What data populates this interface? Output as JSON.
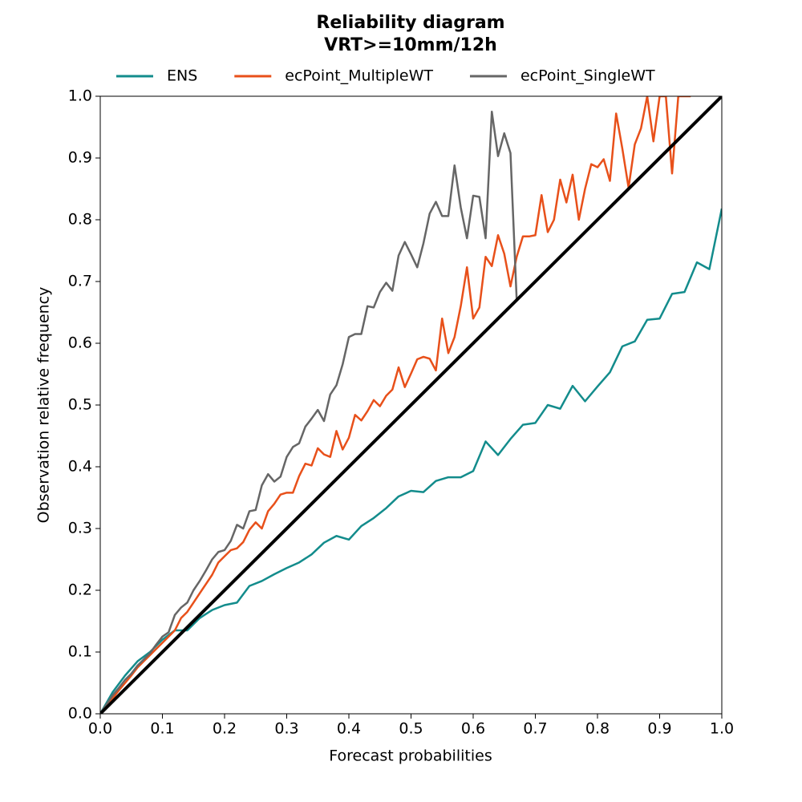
{
  "chart_data": {
    "type": "line",
    "title": "Reliability diagram",
    "subtitle": "VRT>=10mm/12h",
    "x_label": "Forecast probabilities",
    "y_label": "Observation relative frequency",
    "xlim": [
      0,
      1
    ],
    "ylim": [
      0,
      1
    ],
    "xticks": [
      {
        "value": 0,
        "label": "0.0"
      },
      0.1,
      0.2,
      0.3,
      0.4,
      0.5,
      0.6,
      0.7,
      0.8,
      0.9,
      {
        "value": 1,
        "label": "1.0"
      }
    ],
    "yticks": [
      {
        "value": 0,
        "label": "0.0"
      },
      0.1,
      0.2,
      0.3,
      0.4,
      0.5,
      0.6,
      0.7,
      0.8,
      0.9,
      {
        "value": 1,
        "label": "1.0"
      }
    ],
    "grid": false,
    "legend": "top",
    "reference_line": {
      "x": [
        0,
        1
      ],
      "values": [
        0,
        1
      ],
      "color": "#000000"
    },
    "series": [
      {
        "name": "ENS",
        "color": "#138c8c",
        "x": [
          0,
          0.02,
          0.04,
          0.06,
          0.08,
          0.1,
          0.12,
          0.14,
          0.16,
          0.18,
          0.2,
          0.22,
          0.24,
          0.26,
          0.28,
          0.3,
          0.32,
          0.34,
          0.36,
          0.38,
          0.4,
          0.42,
          0.44,
          0.46,
          0.48,
          0.5,
          0.52,
          0.54,
          0.56,
          0.58,
          0.6,
          0.62,
          0.64,
          0.66,
          0.68,
          0.7,
          0.72,
          0.74,
          0.76,
          0.78,
          0.8,
          0.82,
          0.84,
          0.86,
          0.88,
          0.9,
          0.92,
          0.94,
          0.96,
          0.98,
          1
        ],
        "values": [
          0,
          0.035,
          0.062,
          0.085,
          0.1,
          0.12,
          0.135,
          0.135,
          0.155,
          0.168,
          0.176,
          0.18,
          0.207,
          0.215,
          0.226,
          0.236,
          0.245,
          0.258,
          0.277,
          0.288,
          0.282,
          0.304,
          0.317,
          0.333,
          0.352,
          0.361,
          0.359,
          0.377,
          0.383,
          0.383,
          0.393,
          0.441,
          0.419,
          0.445,
          0.468,
          0.471,
          0.5,
          0.494,
          0.531,
          0.506,
          0.53,
          0.553,
          0.595,
          0.603,
          0.638,
          0.64,
          0.68,
          0.683,
          0.731,
          0.72,
          0.818
        ]
      },
      {
        "name": "ecPoint_MultipleWT",
        "color": "#e8501a",
        "x": [
          0,
          0.01,
          0.02,
          0.03,
          0.04,
          0.05,
          0.06,
          0.07,
          0.08,
          0.09,
          0.1,
          0.11,
          0.12,
          0.13,
          0.14,
          0.15,
          0.16,
          0.17,
          0.18,
          0.19,
          0.2,
          0.21,
          0.22,
          0.23,
          0.24,
          0.25,
          0.26,
          0.27,
          0.28,
          0.29,
          0.3,
          0.31,
          0.32,
          0.33,
          0.34,
          0.35,
          0.36,
          0.37,
          0.38,
          0.39,
          0.4,
          0.41,
          0.42,
          0.43,
          0.44,
          0.45,
          0.46,
          0.47,
          0.48,
          0.49,
          0.5,
          0.51,
          0.52,
          0.53,
          0.54,
          0.55,
          0.56,
          0.57,
          0.58,
          0.59,
          0.6,
          0.61,
          0.62,
          0.63,
          0.64,
          0.65,
          0.66,
          0.67,
          0.68,
          0.69,
          0.7,
          0.71,
          0.72,
          0.73,
          0.74,
          0.75,
          0.76,
          0.77,
          0.78,
          0.79,
          0.8,
          0.81,
          0.82,
          0.83,
          0.84,
          0.85,
          0.86,
          0.87,
          0.88,
          0.89,
          0.9,
          0.91,
          0.92,
          0.93,
          0.94,
          0.95
        ],
        "values": [
          0,
          0.012,
          0.025,
          0.038,
          0.05,
          0.062,
          0.075,
          0.085,
          0.095,
          0.105,
          0.115,
          0.125,
          0.135,
          0.155,
          0.165,
          0.18,
          0.195,
          0.21,
          0.225,
          0.245,
          0.255,
          0.265,
          0.268,
          0.278,
          0.298,
          0.31,
          0.3,
          0.328,
          0.34,
          0.355,
          0.358,
          0.358,
          0.385,
          0.405,
          0.402,
          0.43,
          0.42,
          0.416,
          0.458,
          0.428,
          0.447,
          0.484,
          0.475,
          0.49,
          0.508,
          0.498,
          0.515,
          0.525,
          0.561,
          0.529,
          0.551,
          0.574,
          0.578,
          0.575,
          0.556,
          0.64,
          0.584,
          0.61,
          0.66,
          0.723,
          0.64,
          0.658,
          0.74,
          0.725,
          0.775,
          0.745,
          0.692,
          0.74,
          0.773,
          0.773,
          0.775,
          0.84,
          0.78,
          0.8,
          0.865,
          0.828,
          0.873,
          0.8,
          0.85,
          0.89,
          0.885,
          0.898,
          0.863,
          0.972,
          0.915,
          0.852,
          0.922,
          0.948,
          1,
          0.927,
          1,
          1,
          0.875,
          1,
          1,
          1
        ]
      },
      {
        "name": "ecPoint_SingleWT",
        "color": "#666666",
        "x": [
          0,
          0.01,
          0.02,
          0.03,
          0.04,
          0.05,
          0.06,
          0.07,
          0.08,
          0.09,
          0.1,
          0.11,
          0.12,
          0.13,
          0.14,
          0.15,
          0.16,
          0.17,
          0.18,
          0.19,
          0.2,
          0.21,
          0.22,
          0.23,
          0.24,
          0.25,
          0.26,
          0.27,
          0.28,
          0.29,
          0.3,
          0.31,
          0.32,
          0.33,
          0.34,
          0.35,
          0.36,
          0.37,
          0.38,
          0.39,
          0.4,
          0.41,
          0.42,
          0.43,
          0.44,
          0.45,
          0.46,
          0.47,
          0.48,
          0.49,
          0.5,
          0.51,
          0.52,
          0.53,
          0.54,
          0.55,
          0.56,
          0.57,
          0.58,
          0.59,
          0.6,
          0.61,
          0.62,
          0.63,
          0.64,
          0.65,
          0.66,
          0.67
        ],
        "values": [
          0,
          0.015,
          0.03,
          0.042,
          0.055,
          0.065,
          0.078,
          0.088,
          0.098,
          0.112,
          0.125,
          0.132,
          0.16,
          0.172,
          0.18,
          0.2,
          0.215,
          0.232,
          0.25,
          0.262,
          0.265,
          0.28,
          0.306,
          0.3,
          0.328,
          0.33,
          0.37,
          0.388,
          0.376,
          0.384,
          0.416,
          0.432,
          0.438,
          0.465,
          0.478,
          0.492,
          0.474,
          0.517,
          0.532,
          0.566,
          0.61,
          0.615,
          0.615,
          0.66,
          0.658,
          0.683,
          0.698,
          0.685,
          0.742,
          0.764,
          0.744,
          0.723,
          0.762,
          0.81,
          0.829,
          0.806,
          0.806,
          0.888,
          0.82,
          0.77,
          0.839,
          0.837,
          0.77,
          0.975,
          0.903,
          0.94,
          0.908,
          0.67
        ]
      }
    ]
  }
}
